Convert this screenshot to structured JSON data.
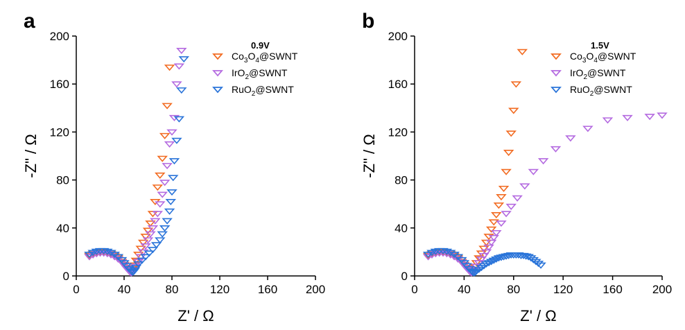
{
  "panels": [
    {
      "letter": "a"
    },
    {
      "letter": "b"
    }
  ],
  "colors": {
    "Co3O4@SWNT": "#f26b21",
    "IrO2@SWNT": "#b46ae0",
    "RuO2@SWNT": "#2a74d9"
  },
  "chart_data": [
    {
      "type": "scatter",
      "title": "0.9V",
      "xlabel": "Z' / Ω",
      "ylabel": "-Z\" / Ω",
      "xlim": [
        0,
        200
      ],
      "ylim": [
        0,
        200
      ],
      "xticks": [
        0,
        40,
        80,
        120,
        160,
        200
      ],
      "yticks": [
        0,
        40,
        80,
        120,
        160,
        200
      ],
      "legend_position": "top-right",
      "grid": false,
      "marker": "down-triangle-open",
      "series": [
        {
          "name": "Co3O4@SWNT",
          "legend": [
            "Co",
            "3",
            "O",
            "4",
            "@SWNT"
          ],
          "color": "#f26b21",
          "x": [
            11,
            14,
            17,
            20,
            23,
            26,
            29,
            32,
            35,
            38,
            40,
            42,
            44,
            46,
            47,
            48,
            49,
            50,
            52,
            54,
            56,
            58,
            60,
            62,
            64,
            66,
            68,
            70,
            72,
            74,
            76,
            78
          ],
          "y": [
            17,
            18.5,
            19.5,
            20,
            20,
            19.5,
            18.5,
            17,
            15,
            12,
            9.5,
            7,
            5,
            3,
            4,
            6,
            9,
            13,
            18,
            23,
            28,
            33,
            38,
            44,
            52,
            62,
            74,
            84,
            98,
            117,
            142,
            174
          ]
        },
        {
          "name": "IrO2@SWNT",
          "legend": [
            "IrO",
            "2",
            "@SWNT"
          ],
          "color": "#b46ae0",
          "x": [
            11,
            14,
            17,
            20,
            23,
            26,
            29,
            32,
            35,
            38,
            40,
            42,
            44,
            45,
            46,
            47,
            48,
            50,
            52,
            54,
            56,
            58,
            60,
            62,
            64,
            66,
            68,
            70,
            72,
            74,
            76,
            78,
            80,
            82,
            84,
            86,
            88
          ],
          "y": [
            16,
            17.5,
            18.5,
            19,
            19,
            18.5,
            17.5,
            16,
            14,
            11.5,
            9,
            6.5,
            4.5,
            3,
            2.5,
            3,
            5,
            8,
            12,
            16,
            20,
            25,
            30,
            35,
            40,
            46,
            52,
            60,
            68,
            78,
            92,
            110,
            120,
            132,
            160,
            175,
            188
          ]
        },
        {
          "name": "RuO2@SWNT",
          "legend": [
            "RuO",
            "2",
            "@SWNT"
          ],
          "color": "#2a74d9",
          "x": [
            11,
            14,
            17,
            20,
            23,
            26,
            29,
            32,
            35,
            38,
            40,
            42,
            44,
            46,
            47,
            48,
            49,
            50,
            52,
            55,
            58,
            61,
            64,
            67,
            70,
            72,
            74,
            76,
            78,
            79,
            80,
            81,
            82,
            84,
            86,
            88,
            90
          ],
          "y": [
            18,
            19.5,
            20.5,
            21,
            21,
            20.5,
            19.5,
            18,
            16,
            13.5,
            11,
            8.5,
            6,
            4,
            3,
            3.5,
            5,
            7,
            10,
            13,
            16,
            19,
            22,
            26,
            30,
            35,
            40,
            46,
            54,
            62,
            70,
            82,
            96,
            113,
            131,
            155,
            181
          ]
        }
      ]
    },
    {
      "type": "scatter",
      "title": "1.5V",
      "xlabel": "Z' / Ω",
      "ylabel": "-Z\" / Ω",
      "xlim": [
        0,
        200
      ],
      "ylim": [
        0,
        200
      ],
      "xticks": [
        0,
        40,
        80,
        120,
        160,
        200
      ],
      "yticks": [
        0,
        40,
        80,
        120,
        160,
        200
      ],
      "legend_position": "top-right",
      "grid": false,
      "marker": "down-triangle-open",
      "series": [
        {
          "name": "Co3O4@SWNT",
          "legend": [
            "Co",
            "3",
            "O",
            "4",
            "@SWNT"
          ],
          "color": "#f26b21",
          "x": [
            11,
            14,
            17,
            20,
            23,
            26,
            29,
            32,
            35,
            38,
            40,
            42,
            44,
            46,
            47,
            48,
            49,
            50,
            52,
            54,
            56,
            58,
            60,
            62,
            64,
            66,
            68,
            70,
            72,
            74,
            76,
            78,
            80,
            82,
            87
          ],
          "y": [
            17,
            18.5,
            19.5,
            20,
            20,
            19.5,
            18.5,
            17,
            15,
            12,
            9.5,
            7,
            5,
            3,
            3.5,
            5.5,
            8,
            11,
            15,
            19,
            23,
            28,
            33,
            39,
            45,
            51,
            59,
            66,
            73,
            87,
            103,
            119,
            138,
            160,
            187
          ]
        },
        {
          "name": "IrO2@SWNT",
          "legend": [
            "IrO",
            "2",
            "@SWNT"
          ],
          "color": "#b46ae0",
          "x": [
            11,
            14,
            17,
            20,
            23,
            26,
            29,
            32,
            35,
            38,
            40,
            42,
            44,
            45,
            46,
            47,
            48,
            50,
            52,
            54,
            56,
            58,
            60,
            62,
            64,
            66,
            70,
            74,
            78,
            83,
            89,
            96,
            104,
            114,
            126,
            140,
            156,
            172,
            190,
            200
          ],
          "y": [
            16,
            17.5,
            18.5,
            19,
            19,
            18.5,
            17.5,
            16,
            14,
            11.5,
            9,
            6.5,
            4.5,
            3,
            2.5,
            3,
            5,
            8,
            11,
            14,
            17,
            20,
            24,
            28,
            32,
            36,
            44,
            52,
            58,
            65,
            75,
            87,
            96,
            106,
            115,
            123,
            130,
            132,
            133,
            134
          ]
        },
        {
          "name": "RuO2@SWNT",
          "legend": [
            "RuO",
            "2",
            "@SWNT"
          ],
          "color": "#2a74d9",
          "x": [
            11,
            14,
            17,
            20,
            23,
            26,
            29,
            32,
            35,
            38,
            40,
            42,
            44,
            46,
            47,
            48,
            49,
            50,
            52,
            54,
            56,
            58,
            60,
            62,
            64,
            66,
            68,
            70,
            72,
            74,
            76,
            78,
            80,
            82,
            84,
            86,
            88,
            90,
            92,
            94,
            96,
            98,
            100,
            102
          ],
          "y": [
            18,
            19.5,
            20.5,
            21,
            21,
            20.5,
            19.5,
            18,
            16,
            13.5,
            11,
            8.5,
            6,
            4,
            3,
            2.5,
            3,
            4,
            5.5,
            7,
            8.5,
            10,
            11,
            12,
            13,
            14,
            15,
            15.5,
            16,
            16.5,
            17,
            17.5,
            17.5,
            17.5,
            17.5,
            17,
            17,
            16.5,
            16,
            15,
            13.5,
            12,
            10.5,
            9
          ]
        }
      ]
    }
  ]
}
